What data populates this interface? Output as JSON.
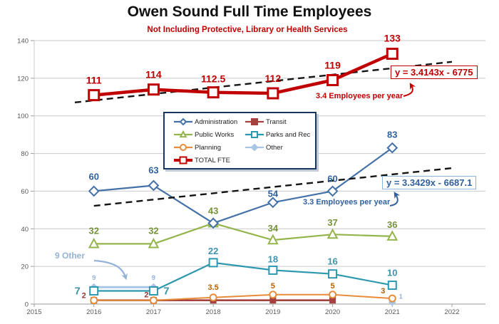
{
  "chart": {
    "title": "Owen Sound Full Time Employees",
    "subtitle": "Not Including Protective, Library or Health Services",
    "title_color": "#111111",
    "subtitle_color": "#C00000"
  },
  "chart_data": {
    "type": "line",
    "title": "Owen Sound Full Time Employees",
    "subtitle": "Not Including Protective, Library or Health Services",
    "xlabel": "",
    "ylabel": "",
    "xlim": [
      2015,
      2022.56
    ],
    "ylim": [
      0,
      140
    ],
    "x_ticks": [
      2015,
      2016,
      2017,
      2018,
      2019,
      2020,
      2021,
      2022
    ],
    "y_ticks": [
      0,
      20,
      40,
      60,
      80,
      100,
      120,
      140
    ],
    "grid": "horizontal",
    "legend_position": "upper-center-box",
    "series": [
      {
        "name": "Administration",
        "color": "#4472A8",
        "labelColor": "#31619C",
        "marker": "diamond",
        "markerFill": "#ffffff",
        "markerSize": 6.5,
        "lineWidth": 2.2,
        "labelSize": 13,
        "z": 5,
        "values": [
          [
            2016,
            60
          ],
          [
            2017,
            63
          ],
          [
            2018,
            43
          ],
          [
            2019,
            54
          ],
          [
            2020,
            60
          ],
          [
            2021,
            83
          ]
        ],
        "labels": [
          {
            "x": 2016,
            "text": "60",
            "dy": -16
          },
          {
            "x": 2017,
            "text": "63",
            "dy": -17
          },
          {
            "x": 2019,
            "text": "54",
            "dy": -8
          },
          {
            "x": 2020,
            "text": "60",
            "dy": -13
          },
          {
            "x": 2021,
            "text": "83",
            "dy": -14
          }
        ]
      },
      {
        "name": "Transit",
        "color": "#A5413E",
        "labelColor": "#943634",
        "marker": "square",
        "markerFill": "#A5413E",
        "markerSize": 3.5,
        "lineWidth": 2.6,
        "labelSize": 11,
        "z": 1,
        "values": [
          [
            2016,
            2
          ],
          [
            2017,
            2
          ],
          [
            2018,
            2
          ],
          [
            2019,
            2
          ],
          [
            2020,
            2
          ]
        ],
        "labels": [
          {
            "x": 2016,
            "text": "2",
            "dx": -14,
            "dy": -3
          },
          {
            "x": 2017,
            "text": "2",
            "dx": -10,
            "dy": -4
          }
        ]
      },
      {
        "name": "Public Works",
        "color": "#94B54C",
        "labelColor": "#76923C",
        "marker": "triangle",
        "markerFill": "#ffffff",
        "markerSize": 6.5,
        "lineWidth": 2.2,
        "labelSize": 13,
        "z": 4,
        "values": [
          [
            2016,
            32
          ],
          [
            2017,
            32
          ],
          [
            2018,
            43
          ],
          [
            2019,
            34
          ],
          [
            2020,
            37
          ],
          [
            2021,
            36
          ]
        ],
        "labels": [
          {
            "x": 2016,
            "text": "32",
            "dy": -14
          },
          {
            "x": 2017,
            "text": "32",
            "dy": -14
          },
          {
            "x": 2018,
            "text": "43",
            "dy": -13
          },
          {
            "x": 2019,
            "text": "34",
            "dy": -12
          },
          {
            "x": 2020,
            "text": "37",
            "dy": -12
          },
          {
            "x": 2021,
            "text": "36",
            "dy": -12
          }
        ]
      },
      {
        "name": "Parks and Rec",
        "color": "#2E99AE",
        "labelColor": "#3E94AB",
        "marker": "square",
        "markerFill": "#ffffff",
        "markerSize": 5.5,
        "lineWidth": 2.2,
        "labelSize": 13,
        "z": 3,
        "values": [
          [
            2016,
            7
          ],
          [
            2017,
            7
          ],
          [
            2018,
            22
          ],
          [
            2019,
            18
          ],
          [
            2020,
            16
          ],
          [
            2021,
            10
          ]
        ],
        "labels": [
          {
            "x": 2016,
            "text": "7",
            "dx": -23,
            "dy": 5,
            "size": 15
          },
          {
            "x": 2017,
            "text": "7",
            "dx": 18,
            "dy": 5,
            "size": 15
          },
          {
            "x": 2018,
            "text": "22",
            "dy": -12
          },
          {
            "x": 2019,
            "text": "18",
            "dy": -11
          },
          {
            "x": 2020,
            "text": "16",
            "dy": -13
          },
          {
            "x": 2021,
            "text": "10",
            "dy": -13
          }
        ]
      },
      {
        "name": "Planning",
        "color": "#E68C3A",
        "labelColor": "#B45F06",
        "marker": "circle",
        "markerFill": "#ffffff",
        "markerSize": 4.5,
        "lineWidth": 2,
        "labelSize": 11,
        "z": 2,
        "values": [
          [
            2016,
            2
          ],
          [
            2017,
            2
          ],
          [
            2018,
            3.5
          ],
          [
            2019,
            5
          ],
          [
            2020,
            5
          ],
          [
            2021,
            3
          ]
        ],
        "labels": [
          {
            "x": 2018,
            "text": "3.5",
            "dy": -11
          },
          {
            "x": 2019,
            "text": "5",
            "dy": -9
          },
          {
            "x": 2020,
            "text": "5",
            "dy": -9
          },
          {
            "x": 2021,
            "text": "3",
            "dx": -13,
            "dy": -7
          }
        ]
      },
      {
        "name": "Other",
        "color": "#A9C5E4",
        "labelColor": "#95B3D7",
        "marker": "diamond",
        "markerFill": "#A9C5E4",
        "markerSize": 4,
        "lineWidth": 3,
        "labelSize": 9.5,
        "z": 0,
        "values": [
          [
            2016,
            9
          ],
          [
            2017,
            9
          ],
          [
            2021,
            1
          ]
        ],
        "labels": [
          {
            "x": 2016,
            "text": "9",
            "dy": -10
          },
          {
            "x": 2017,
            "text": "9",
            "dy": -10
          },
          {
            "x": 2021,
            "text": "1",
            "dx": 12,
            "dy": -5
          }
        ]
      },
      {
        "name": "TOTAL FTE",
        "color": "#C00000",
        "labelColor": "#C00000",
        "marker": "square",
        "markerFill": "#ffffff",
        "markerSize": 7,
        "markerStrokeWidth": 3,
        "lineWidth": 4.5,
        "labelSize": 14,
        "z": 7,
        "values": [
          [
            2016,
            111
          ],
          [
            2017,
            114
          ],
          [
            2018,
            112.5
          ],
          [
            2019,
            112
          ],
          [
            2020,
            119
          ],
          [
            2021,
            133
          ]
        ],
        "labels": [
          {
            "x": 2016,
            "text": "111",
            "dy": -16
          },
          {
            "x": 2017,
            "text": "114",
            "dy": -16
          },
          {
            "x": 2018,
            "text": "112.5",
            "dy": -14
          },
          {
            "x": 2019,
            "text": "112",
            "dy": -16
          },
          {
            "x": 2020,
            "text": "119",
            "dy": -16
          },
          {
            "x": 2021,
            "text": "133",
            "dy": -17
          }
        ]
      }
    ],
    "trendlines": [
      {
        "series": "TOTAL FTE",
        "equation": "y = 3.4143x - 6775",
        "slope": 3.4143,
        "intercept": -6775,
        "x_start": 2015.68,
        "x_end": 2022.0,
        "color": "#141414",
        "annotation": "3.4 Employees per year",
        "annotation_color": "#C00000"
      },
      {
        "series": "Administration",
        "equation": "y = 3.3429x - 6687.1",
        "slope": 3.3429,
        "intercept": -6687.1,
        "x_start": 2016.0,
        "x_end": 2022.05,
        "color": "#141414",
        "annotation": "3.3 Employees per year",
        "annotation_color": "#31619C"
      }
    ],
    "annotations": [
      {
        "text": "9 Other",
        "color": "#95B3D7"
      }
    ]
  }
}
